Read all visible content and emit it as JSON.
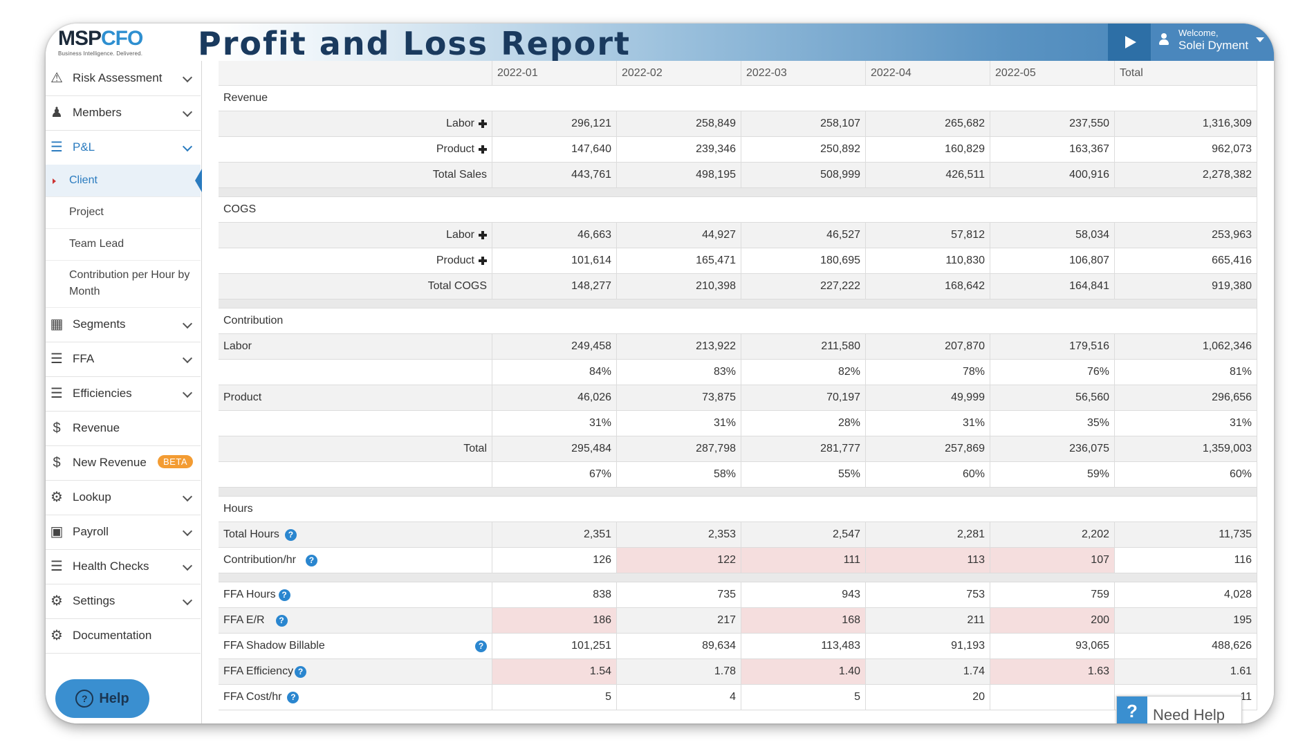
{
  "header": {
    "logo_msp": "MSP",
    "logo_cfo": "CFO",
    "logo_tagline": "Business Intelligence. Delivered.",
    "title": "Profit and Loss Report",
    "welcome": "Welcome,",
    "user_name": "Solei Dyment"
  },
  "sidebar": {
    "items": [
      {
        "label": "Risk Assessment"
      },
      {
        "label": "Members"
      },
      {
        "label": "P&L"
      },
      {
        "label": "Segments"
      },
      {
        "label": "FFA"
      },
      {
        "label": "Efficiencies"
      },
      {
        "label": "Revenue"
      },
      {
        "label": "New Revenue"
      },
      {
        "label": "Lookup"
      },
      {
        "label": "Payroll"
      },
      {
        "label": "Health Checks"
      },
      {
        "label": "Settings"
      },
      {
        "label": "Documentation"
      }
    ],
    "pl_sub": [
      {
        "label": "Client"
      },
      {
        "label": "Project"
      },
      {
        "label": "Team Lead"
      },
      {
        "label": "Contribution per Hour by Month"
      }
    ],
    "beta_badge": "BETA",
    "help_label": "Help"
  },
  "table": {
    "columns": [
      "",
      "2022-01",
      "2022-02",
      "2022-03",
      "2022-04",
      "2022-05",
      "Total"
    ],
    "sections": {
      "revenue": "Revenue",
      "cogs": "COGS",
      "contribution": "Contribution",
      "hours": "Hours"
    },
    "revenue_rows": [
      {
        "label": "Labor",
        "values": [
          "296,121",
          "258,849",
          "258,107",
          "265,682",
          "237,550",
          "1,316,309"
        ]
      },
      {
        "label": "Product",
        "values": [
          "147,640",
          "239,346",
          "250,892",
          "160,829",
          "163,367",
          "962,073"
        ]
      },
      {
        "label": "Total Sales",
        "values": [
          "443,761",
          "498,195",
          "508,999",
          "426,511",
          "400,916",
          "2,278,382"
        ]
      }
    ],
    "cogs_rows": [
      {
        "label": "Labor",
        "values": [
          "46,663",
          "44,927",
          "46,527",
          "57,812",
          "58,034",
          "253,963"
        ]
      },
      {
        "label": "Product",
        "values": [
          "101,614",
          "165,471",
          "180,695",
          "110,830",
          "106,807",
          "665,416"
        ]
      },
      {
        "label": "Total COGS",
        "values": [
          "148,277",
          "210,398",
          "227,222",
          "168,642",
          "164,841",
          "919,380"
        ]
      }
    ],
    "contribution_rows": [
      {
        "label": "Labor",
        "values": [
          "249,458",
          "213,922",
          "211,580",
          "207,870",
          "179,516",
          "1,062,346"
        ]
      },
      {
        "label": "",
        "values": [
          "84%",
          "83%",
          "82%",
          "78%",
          "76%",
          "81%"
        ]
      },
      {
        "label": "Product",
        "values": [
          "46,026",
          "73,875",
          "70,197",
          "49,999",
          "56,560",
          "296,656"
        ]
      },
      {
        "label": "",
        "values": [
          "31%",
          "31%",
          "28%",
          "31%",
          "35%",
          "31%"
        ]
      },
      {
        "label": "Total",
        "values": [
          "295,484",
          "287,798",
          "281,777",
          "257,869",
          "236,075",
          "1,359,003"
        ]
      },
      {
        "label": "",
        "values": [
          "67%",
          "58%",
          "55%",
          "60%",
          "59%",
          "60%"
        ]
      }
    ],
    "hours_rows": [
      {
        "label": "Total Hours",
        "values": [
          "2,351",
          "2,353",
          "2,547",
          "2,281",
          "2,202",
          "11,735"
        ]
      },
      {
        "label": "Contribution/hr",
        "values": [
          "126",
          "122",
          "111",
          "113",
          "107",
          "116"
        ]
      }
    ],
    "ffa_rows": [
      {
        "label": "FFA Hours",
        "values": [
          "838",
          "735",
          "943",
          "753",
          "759",
          "4,028"
        ]
      },
      {
        "label": "FFA E/R",
        "values": [
          "186",
          "217",
          "168",
          "211",
          "200",
          "195"
        ]
      },
      {
        "label": "FFA Shadow Billable",
        "values": [
          "101,251",
          "89,634",
          "113,483",
          "91,193",
          "93,065",
          "488,626"
        ]
      },
      {
        "label": "FFA Efficiency",
        "values": [
          "1.54",
          "1.78",
          "1.40",
          "1.74",
          "1.63",
          "1.61"
        ]
      },
      {
        "label": "FFA Cost/hr",
        "values": [
          "5",
          "4",
          "5",
          "20",
          "",
          "11"
        ]
      }
    ],
    "highlight_color": "#f5dede"
  },
  "need_help": {
    "label": "Need Help"
  }
}
